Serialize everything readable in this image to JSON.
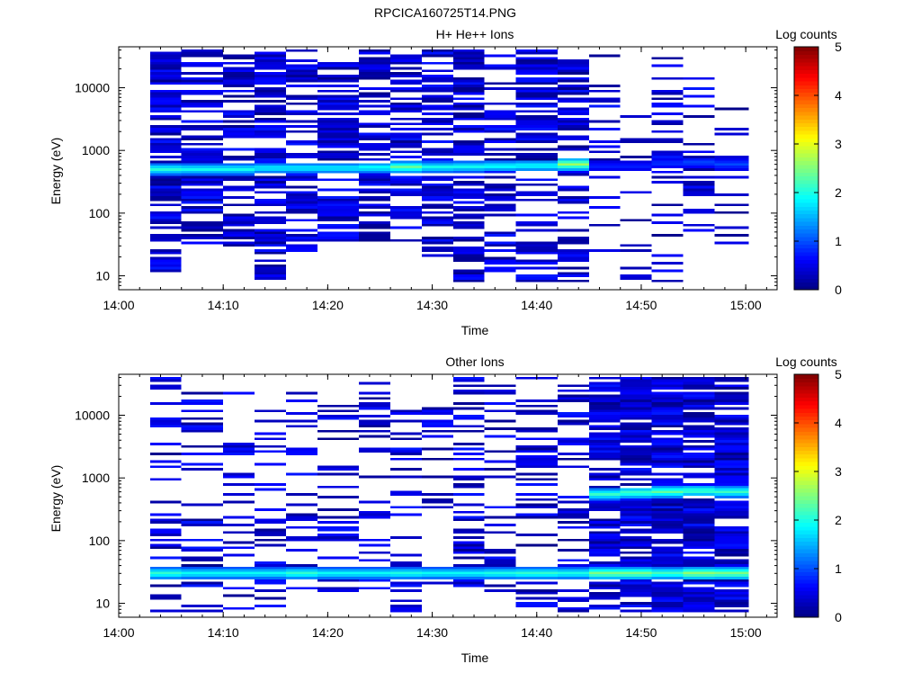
{
  "figure_title": "RPCICA160725T14.PNG",
  "chart_data": [
    {
      "type": "heatmap",
      "title": "H+ He++ Ions",
      "xlabel": "Time",
      "ylabel": "Energy (eV)",
      "colorbar_label": "Log counts",
      "x_ticks": [
        "14:00",
        "14:10",
        "14:20",
        "14:30",
        "14:40",
        "14:50",
        "15:00"
      ],
      "y_ticks": [
        "10",
        "100",
        "1000",
        "10000"
      ],
      "color_ticks": [
        "0",
        "1",
        "2",
        "3",
        "4",
        "5"
      ],
      "x_range": [
        "14:00",
        "15:03"
      ],
      "y_range_ev": [
        6,
        45000
      ],
      "log_y": true,
      "color_range": [
        0,
        5
      ],
      "colormap": "jet",
      "time_bins": [
        "14:03",
        "14:06",
        "14:10",
        "14:13",
        "14:16",
        "14:19",
        "14:23",
        "14:26",
        "14:29",
        "14:32",
        "14:35",
        "14:38",
        "14:42",
        "14:45",
        "14:48",
        "14:51",
        "14:54",
        "14:57"
      ],
      "peak_energy_ev": [
        500,
        500,
        500,
        520,
        520,
        520,
        530,
        540,
        540,
        550,
        560,
        570,
        600,
        560,
        560,
        620,
        640,
        600
      ],
      "peak_log_counts": [
        2.1,
        2.0,
        2.0,
        1.9,
        1.9,
        1.9,
        2.0,
        2.4,
        2.0,
        2.0,
        2.0,
        2.0,
        2.7,
        0.8,
        0.8,
        0.9,
        1.0,
        1.0
      ],
      "max_energy_ev": [
        40000,
        40000,
        40000,
        40000,
        40000,
        40000,
        40000,
        40000,
        40000,
        40000,
        40000,
        40000,
        40000,
        40000,
        5000,
        35000,
        35000,
        5000
      ],
      "min_energy_ev": [
        11,
        30,
        30,
        8,
        25,
        35,
        35,
        30,
        18,
        8,
        12,
        8,
        8,
        25,
        8,
        8,
        14,
        30
      ],
      "fill_fraction": [
        0.75,
        0.7,
        0.65,
        0.6,
        0.65,
        0.65,
        0.6,
        0.6,
        0.6,
        0.65,
        0.55,
        0.55,
        0.6,
        0.2,
        0.25,
        0.3,
        0.25,
        0.25
      ]
    },
    {
      "type": "heatmap",
      "title": "Other Ions",
      "xlabel": "Time",
      "ylabel": "Energy (eV)",
      "colorbar_label": "Log counts",
      "x_ticks": [
        "14:00",
        "14:10",
        "14:20",
        "14:30",
        "14:40",
        "14:50",
        "15:00"
      ],
      "y_ticks": [
        "10",
        "100",
        "1000",
        "10000"
      ],
      "color_ticks": [
        "0",
        "1",
        "2",
        "3",
        "4",
        "5"
      ],
      "x_range": [
        "14:00",
        "15:03"
      ],
      "y_range_ev": [
        6,
        45000
      ],
      "log_y": true,
      "color_range": [
        0,
        5
      ],
      "colormap": "jet",
      "time_bins": [
        "14:03",
        "14:06",
        "14:10",
        "14:13",
        "14:16",
        "14:19",
        "14:23",
        "14:26",
        "14:29",
        "14:32",
        "14:35",
        "14:38",
        "14:42",
        "14:45",
        "14:48",
        "14:51",
        "14:54",
        "14:57"
      ],
      "peak_energy_ev": [
        30,
        30,
        30,
        30,
        30,
        30,
        30,
        30,
        30,
        30,
        30,
        30,
        30,
        30,
        30,
        30,
        30,
        30
      ],
      "peak_log_counts": [
        2.2,
        2.0,
        2.0,
        2.0,
        2.2,
        2.0,
        2.0,
        2.1,
        2.0,
        2.0,
        2.1,
        2.2,
        2.1,
        2.6,
        2.6,
        2.3,
        2.7,
        2.6
      ],
      "secondary_peak_energy_ev": [
        0,
        0,
        0,
        0,
        0,
        0,
        0,
        0,
        0,
        0,
        0,
        0,
        0,
        550,
        580,
        600,
        620,
        600
      ],
      "secondary_peak_log_counts": [
        0,
        0,
        0,
        0,
        0,
        0,
        0,
        0,
        0,
        0,
        0,
        0,
        0,
        2.2,
        2.3,
        2.4,
        2.3,
        2.2
      ],
      "max_energy_ev": [
        40000,
        35000,
        30000,
        15000,
        25000,
        20000,
        40000,
        15000,
        15000,
        40000,
        30000,
        40000,
        30000,
        40000,
        40000,
        40000,
        40000,
        40000
      ],
      "min_energy_ev": [
        7,
        7,
        7,
        7,
        14,
        14,
        14,
        7,
        14,
        14,
        12,
        7,
        7,
        7,
        7,
        7,
        7,
        7
      ],
      "fill_fraction": [
        0.3,
        0.3,
        0.3,
        0.3,
        0.3,
        0.3,
        0.3,
        0.3,
        0.3,
        0.35,
        0.3,
        0.35,
        0.35,
        0.8,
        0.85,
        0.85,
        0.85,
        0.85
      ]
    }
  ]
}
